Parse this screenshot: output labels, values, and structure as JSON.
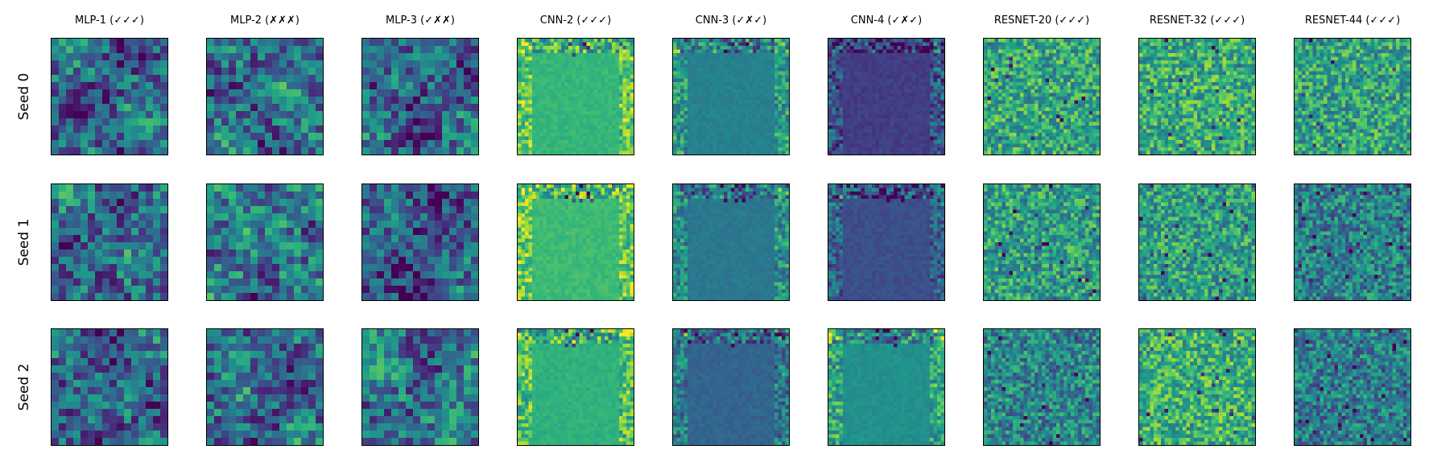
{
  "chart_data": {
    "type": "heatmap",
    "colormap": "viridis",
    "grid": false,
    "columns": [
      {
        "title": "MLP-1 (✓✓✓)",
        "model": "mlp",
        "cells": 16
      },
      {
        "title": "MLP-2 (✗✗✗)",
        "model": "mlp",
        "cells": 16
      },
      {
        "title": "MLP-3 (✓✗✗)",
        "model": "mlp",
        "cells": 16
      },
      {
        "title": "CNN-2 (✓✓✓)",
        "model": "cnn",
        "cells": 32
      },
      {
        "title": "CNN-3 (✓✗✓)",
        "model": "cnn",
        "cells": 32
      },
      {
        "title": "CNN-4 (✓✗✓)",
        "model": "cnn",
        "cells": 32
      },
      {
        "title": "RESNET-20 (✓✓✓)",
        "model": "resnet",
        "cells": 32
      },
      {
        "title": "RESNET-32 (✓✓✓)",
        "model": "resnet",
        "cells": 32
      },
      {
        "title": "RESNET-44 (✓✓✓)",
        "model": "resnet",
        "cells": 32
      }
    ],
    "rows": [
      {
        "label": "Seed 0"
      },
      {
        "label": "Seed 1"
      },
      {
        "label": "Seed 2"
      }
    ],
    "panel_base_levels": [
      [
        0.35,
        0.38,
        0.34,
        0.66,
        0.44,
        0.18,
        0.6,
        0.62,
        0.58
      ],
      [
        0.36,
        0.42,
        0.3,
        0.68,
        0.4,
        0.24,
        0.56,
        0.56,
        0.44
      ],
      [
        0.33,
        0.36,
        0.4,
        0.64,
        0.32,
        0.5,
        0.46,
        0.64,
        0.42
      ]
    ]
  }
}
